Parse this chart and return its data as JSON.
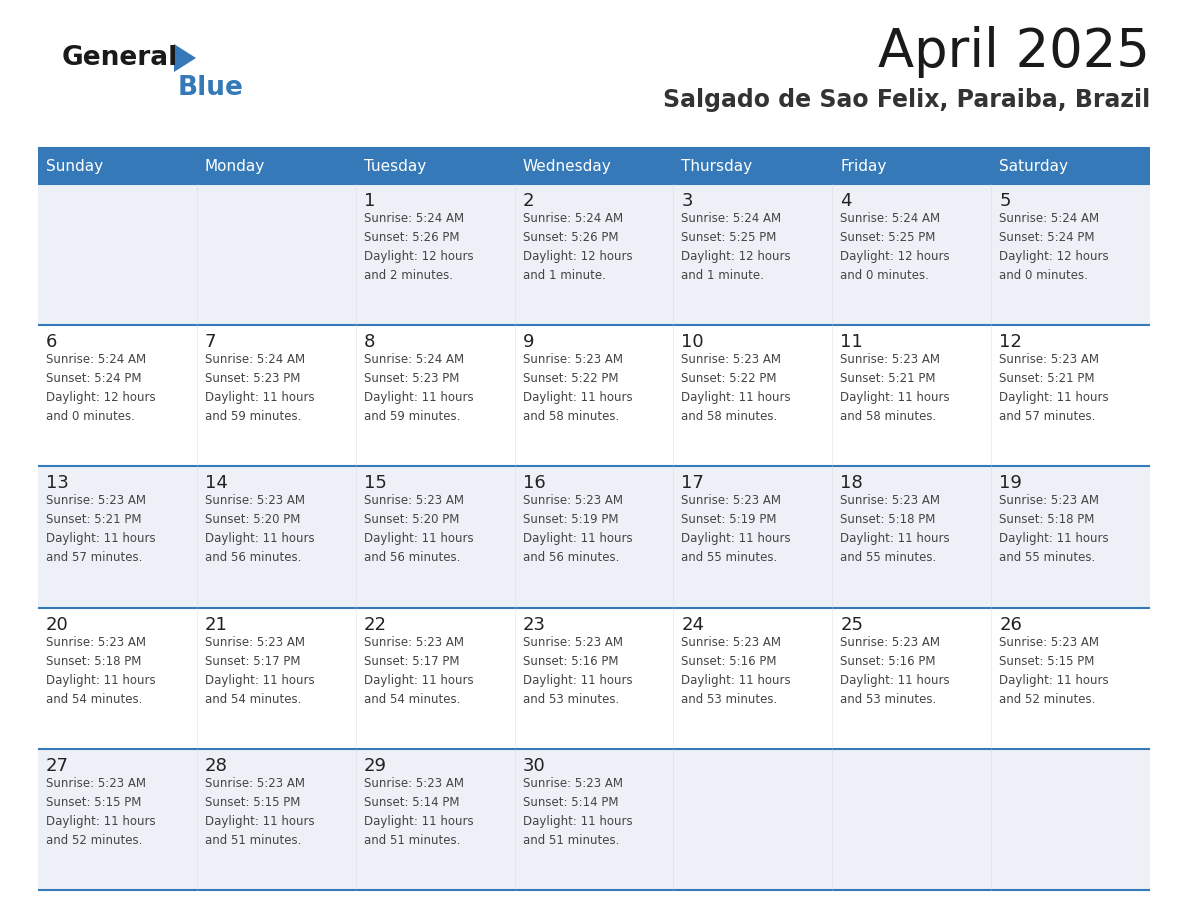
{
  "title": "April 2025",
  "subtitle": "Salgado de Sao Felix, Paraiba, Brazil",
  "header_color": "#3579b8",
  "header_text_color": "#ffffff",
  "line_color": "#3579b8",
  "text_color": "#333333",
  "day_num_color": "#222222",
  "info_text_color": "#444444",
  "cell_bg_odd": "#edf1f7",
  "cell_bg_even": "#ffffff",
  "days_of_week": [
    "Sunday",
    "Monday",
    "Tuesday",
    "Wednesday",
    "Thursday",
    "Friday",
    "Saturday"
  ],
  "calendar_data": [
    [
      {
        "day": "",
        "info": ""
      },
      {
        "day": "",
        "info": ""
      },
      {
        "day": "1",
        "info": "Sunrise: 5:24 AM\nSunset: 5:26 PM\nDaylight: 12 hours\nand 2 minutes."
      },
      {
        "day": "2",
        "info": "Sunrise: 5:24 AM\nSunset: 5:26 PM\nDaylight: 12 hours\nand 1 minute."
      },
      {
        "day": "3",
        "info": "Sunrise: 5:24 AM\nSunset: 5:25 PM\nDaylight: 12 hours\nand 1 minute."
      },
      {
        "day": "4",
        "info": "Sunrise: 5:24 AM\nSunset: 5:25 PM\nDaylight: 12 hours\nand 0 minutes."
      },
      {
        "day": "5",
        "info": "Sunrise: 5:24 AM\nSunset: 5:24 PM\nDaylight: 12 hours\nand 0 minutes."
      }
    ],
    [
      {
        "day": "6",
        "info": "Sunrise: 5:24 AM\nSunset: 5:24 PM\nDaylight: 12 hours\nand 0 minutes."
      },
      {
        "day": "7",
        "info": "Sunrise: 5:24 AM\nSunset: 5:23 PM\nDaylight: 11 hours\nand 59 minutes."
      },
      {
        "day": "8",
        "info": "Sunrise: 5:24 AM\nSunset: 5:23 PM\nDaylight: 11 hours\nand 59 minutes."
      },
      {
        "day": "9",
        "info": "Sunrise: 5:23 AM\nSunset: 5:22 PM\nDaylight: 11 hours\nand 58 minutes."
      },
      {
        "day": "10",
        "info": "Sunrise: 5:23 AM\nSunset: 5:22 PM\nDaylight: 11 hours\nand 58 minutes."
      },
      {
        "day": "11",
        "info": "Sunrise: 5:23 AM\nSunset: 5:21 PM\nDaylight: 11 hours\nand 58 minutes."
      },
      {
        "day": "12",
        "info": "Sunrise: 5:23 AM\nSunset: 5:21 PM\nDaylight: 11 hours\nand 57 minutes."
      }
    ],
    [
      {
        "day": "13",
        "info": "Sunrise: 5:23 AM\nSunset: 5:21 PM\nDaylight: 11 hours\nand 57 minutes."
      },
      {
        "day": "14",
        "info": "Sunrise: 5:23 AM\nSunset: 5:20 PM\nDaylight: 11 hours\nand 56 minutes."
      },
      {
        "day": "15",
        "info": "Sunrise: 5:23 AM\nSunset: 5:20 PM\nDaylight: 11 hours\nand 56 minutes."
      },
      {
        "day": "16",
        "info": "Sunrise: 5:23 AM\nSunset: 5:19 PM\nDaylight: 11 hours\nand 56 minutes."
      },
      {
        "day": "17",
        "info": "Sunrise: 5:23 AM\nSunset: 5:19 PM\nDaylight: 11 hours\nand 55 minutes."
      },
      {
        "day": "18",
        "info": "Sunrise: 5:23 AM\nSunset: 5:18 PM\nDaylight: 11 hours\nand 55 minutes."
      },
      {
        "day": "19",
        "info": "Sunrise: 5:23 AM\nSunset: 5:18 PM\nDaylight: 11 hours\nand 55 minutes."
      }
    ],
    [
      {
        "day": "20",
        "info": "Sunrise: 5:23 AM\nSunset: 5:18 PM\nDaylight: 11 hours\nand 54 minutes."
      },
      {
        "day": "21",
        "info": "Sunrise: 5:23 AM\nSunset: 5:17 PM\nDaylight: 11 hours\nand 54 minutes."
      },
      {
        "day": "22",
        "info": "Sunrise: 5:23 AM\nSunset: 5:17 PM\nDaylight: 11 hours\nand 54 minutes."
      },
      {
        "day": "23",
        "info": "Sunrise: 5:23 AM\nSunset: 5:16 PM\nDaylight: 11 hours\nand 53 minutes."
      },
      {
        "day": "24",
        "info": "Sunrise: 5:23 AM\nSunset: 5:16 PM\nDaylight: 11 hours\nand 53 minutes."
      },
      {
        "day": "25",
        "info": "Sunrise: 5:23 AM\nSunset: 5:16 PM\nDaylight: 11 hours\nand 53 minutes."
      },
      {
        "day": "26",
        "info": "Sunrise: 5:23 AM\nSunset: 5:15 PM\nDaylight: 11 hours\nand 52 minutes."
      }
    ],
    [
      {
        "day": "27",
        "info": "Sunrise: 5:23 AM\nSunset: 5:15 PM\nDaylight: 11 hours\nand 52 minutes."
      },
      {
        "day": "28",
        "info": "Sunrise: 5:23 AM\nSunset: 5:15 PM\nDaylight: 11 hours\nand 51 minutes."
      },
      {
        "day": "29",
        "info": "Sunrise: 5:23 AM\nSunset: 5:14 PM\nDaylight: 11 hours\nand 51 minutes."
      },
      {
        "day": "30",
        "info": "Sunrise: 5:23 AM\nSunset: 5:14 PM\nDaylight: 11 hours\nand 51 minutes."
      },
      {
        "day": "",
        "info": ""
      },
      {
        "day": "",
        "info": ""
      },
      {
        "day": "",
        "info": ""
      }
    ]
  ],
  "logo_general_color": "#1a1a1a",
  "logo_blue_color": "#3579b8",
  "logo_triangle_color": "#3579b8"
}
